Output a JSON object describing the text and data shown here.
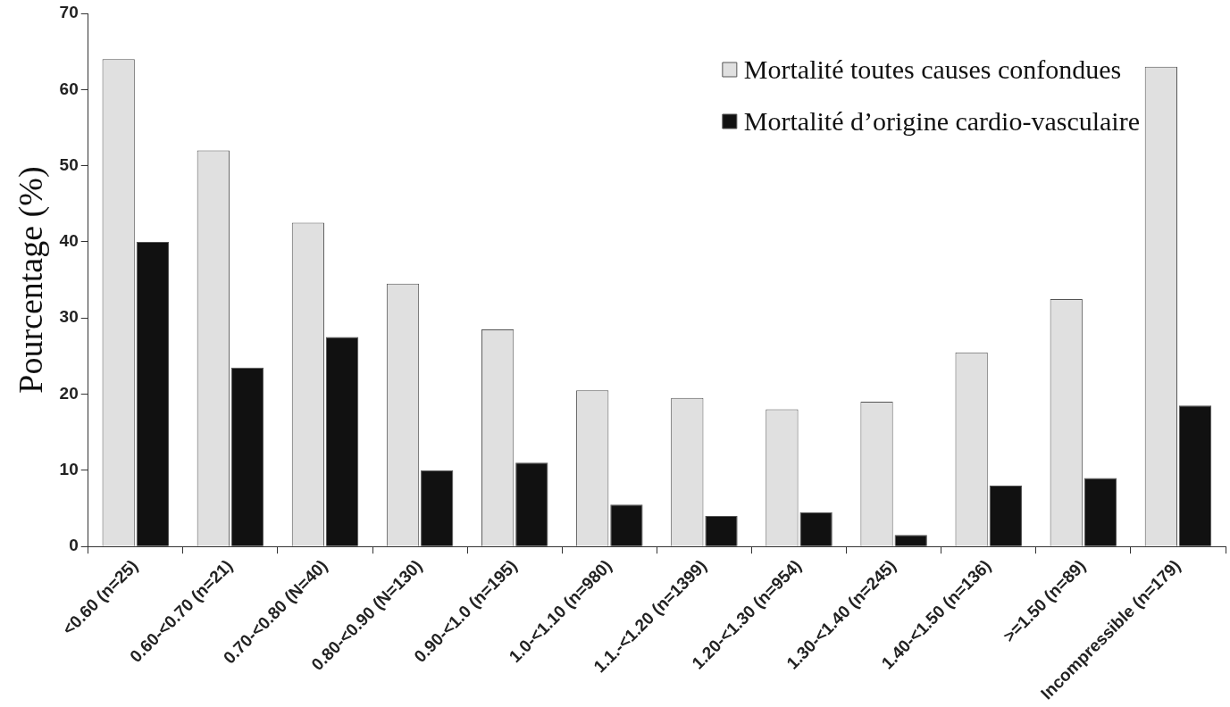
{
  "chart_data": {
    "type": "bar",
    "ylabel": "Pourcentage (%)",
    "categories": [
      "<0.60 (n=25)",
      "0.60-<0.70 (n=21)",
      "0.70-<0.80 (N=40)",
      "0.80-<0.90 (N=130)",
      "0.90-<1.0 (n=195)",
      "1.0-<1.10 (n=980)",
      "1.1.-<1.20 (n=1399)",
      "1.20-<1.30 (n=954)",
      "1.30-<1.40 (n=245)",
      "1.40-<1.50 (n=136)",
      ">=1.50 (n=89)",
      "Incompressible (n=179)"
    ],
    "series": [
      {
        "name": "Mortalité toutes causes confondues",
        "color": "#e0e0e0",
        "values": [
          64,
          52,
          42.5,
          34.5,
          28.5,
          20.5,
          19.5,
          18,
          19,
          25.5,
          32.5,
          63
        ]
      },
      {
        "name": "Mortalité d’origine cardio-vasculaire",
        "color": "#111111",
        "values": [
          40,
          23.5,
          27.5,
          10,
          11,
          5.5,
          4,
          4.5,
          1.5,
          8,
          9,
          18.5
        ]
      }
    ],
    "ylim": [
      0,
      70
    ],
    "yticks": [
      0,
      10,
      20,
      30,
      40,
      50,
      60,
      70
    ],
    "grid": false,
    "legend": "top right"
  }
}
